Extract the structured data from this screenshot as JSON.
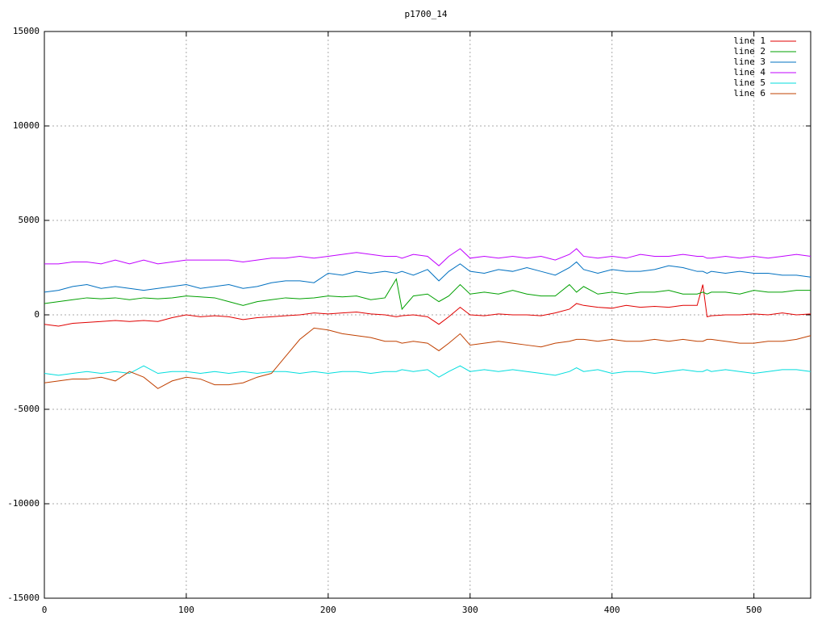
{
  "chart_data": {
    "type": "line",
    "title": "p1700_14",
    "x": [
      0,
      10,
      20,
      30,
      40,
      50,
      60,
      70,
      80,
      90,
      100,
      110,
      120,
      130,
      140,
      150,
      160,
      170,
      180,
      190,
      200,
      210,
      220,
      230,
      240,
      248,
      252,
      260,
      270,
      278,
      285,
      293,
      300,
      310,
      320,
      330,
      340,
      350,
      360,
      370,
      375,
      380,
      390,
      400,
      410,
      420,
      430,
      440,
      450,
      460,
      464,
      467,
      470,
      480,
      490,
      500,
      510,
      520,
      530,
      540
    ],
    "series": [
      {
        "name": "line 1",
        "color": "#e00000",
        "values": [
          -500,
          -600,
          -450,
          -400,
          -350,
          -300,
          -350,
          -300,
          -350,
          -150,
          0,
          -100,
          -50,
          -100,
          -250,
          -150,
          -100,
          -50,
          0,
          100,
          50,
          100,
          150,
          50,
          0,
          -100,
          -50,
          0,
          -100,
          -500,
          -100,
          400,
          0,
          -50,
          50,
          0,
          0,
          -50,
          100,
          300,
          600,
          500,
          400,
          350,
          500,
          400,
          450,
          400,
          500,
          500,
          1600,
          -100,
          -50,
          0,
          0,
          50,
          0,
          100,
          0,
          50
        ]
      },
      {
        "name": "line 2",
        "color": "#00a000",
        "values": [
          600,
          700,
          800,
          900,
          850,
          900,
          800,
          900,
          850,
          900,
          1000,
          950,
          900,
          700,
          500,
          700,
          800,
          900,
          850,
          900,
          1000,
          950,
          1000,
          800,
          900,
          1900,
          300,
          1000,
          1100,
          700,
          1000,
          1600,
          1100,
          1200,
          1100,
          1300,
          1100,
          1000,
          1000,
          1600,
          1200,
          1500,
          1100,
          1200,
          1100,
          1200,
          1200,
          1300,
          1100,
          1100,
          1200,
          1100,
          1200,
          1200,
          1100,
          1300,
          1200,
          1200,
          1300,
          1300
        ]
      },
      {
        "name": "line 3",
        "color": "#0070c0",
        "values": [
          1200,
          1300,
          1500,
          1600,
          1400,
          1500,
          1400,
          1300,
          1400,
          1500,
          1600,
          1400,
          1500,
          1600,
          1400,
          1500,
          1700,
          1800,
          1800,
          1700,
          2200,
          2100,
          2300,
          2200,
          2300,
          2200,
          2300,
          2100,
          2400,
          1800,
          2300,
          2700,
          2300,
          2200,
          2400,
          2300,
          2500,
          2300,
          2100,
          2500,
          2800,
          2400,
          2200,
          2400,
          2300,
          2300,
          2400,
          2600,
          2500,
          2300,
          2300,
          2200,
          2300,
          2200,
          2300,
          2200,
          2200,
          2100,
          2100,
          2000
        ]
      },
      {
        "name": "line 4",
        "color": "#c000ff",
        "values": [
          2700,
          2700,
          2800,
          2800,
          2700,
          2900,
          2700,
          2900,
          2700,
          2800,
          2900,
          2900,
          2900,
          2900,
          2800,
          2900,
          3000,
          3000,
          3100,
          3000,
          3100,
          3200,
          3300,
          3200,
          3100,
          3100,
          3000,
          3200,
          3100,
          2600,
          3100,
          3500,
          3000,
          3100,
          3000,
          3100,
          3000,
          3100,
          2900,
          3200,
          3500,
          3100,
          3000,
          3100,
          3000,
          3200,
          3100,
          3100,
          3200,
          3100,
          3100,
          3000,
          3000,
          3100,
          3000,
          3100,
          3000,
          3100,
          3200,
          3100
        ]
      },
      {
        "name": "line 5",
        "color": "#00dddd",
        "values": [
          -3100,
          -3200,
          -3100,
          -3000,
          -3100,
          -3000,
          -3100,
          -2700,
          -3100,
          -3000,
          -3000,
          -3100,
          -3000,
          -3100,
          -3000,
          -3100,
          -3000,
          -3000,
          -3100,
          -3000,
          -3100,
          -3000,
          -3000,
          -3100,
          -3000,
          -3000,
          -2900,
          -3000,
          -2900,
          -3300,
          -3000,
          -2700,
          -3000,
          -2900,
          -3000,
          -2900,
          -3000,
          -3100,
          -3200,
          -3000,
          -2800,
          -3000,
          -2900,
          -3100,
          -3000,
          -3000,
          -3100,
          -3000,
          -2900,
          -3000,
          -3000,
          -2900,
          -3000,
          -2900,
          -3000,
          -3100,
          -3000,
          -2900,
          -2900,
          -3000
        ]
      },
      {
        "name": "line 6",
        "color": "#c04000",
        "values": [
          -3600,
          -3500,
          -3400,
          -3400,
          -3300,
          -3500,
          -3000,
          -3300,
          -3900,
          -3500,
          -3300,
          -3400,
          -3700,
          -3700,
          -3600,
          -3300,
          -3100,
          -2200,
          -1300,
          -700,
          -800,
          -1000,
          -1100,
          -1200,
          -1400,
          -1400,
          -1500,
          -1400,
          -1500,
          -1900,
          -1500,
          -1000,
          -1600,
          -1500,
          -1400,
          -1500,
          -1600,
          -1700,
          -1500,
          -1400,
          -1300,
          -1300,
          -1400,
          -1300,
          -1400,
          -1400,
          -1300,
          -1400,
          -1300,
          -1400,
          -1400,
          -1300,
          -1300,
          -1400,
          -1500,
          -1500,
          -1400,
          -1400,
          -1300,
          -1100
        ]
      }
    ],
    "xlim": [
      0,
      540
    ],
    "ylim": [
      -15000,
      15000
    ],
    "xticks": [
      0,
      100,
      200,
      300,
      400,
      500
    ],
    "yticks": [
      -15000,
      -10000,
      -5000,
      0,
      5000,
      10000,
      15000
    ],
    "grid": true,
    "legend": "top-right"
  }
}
